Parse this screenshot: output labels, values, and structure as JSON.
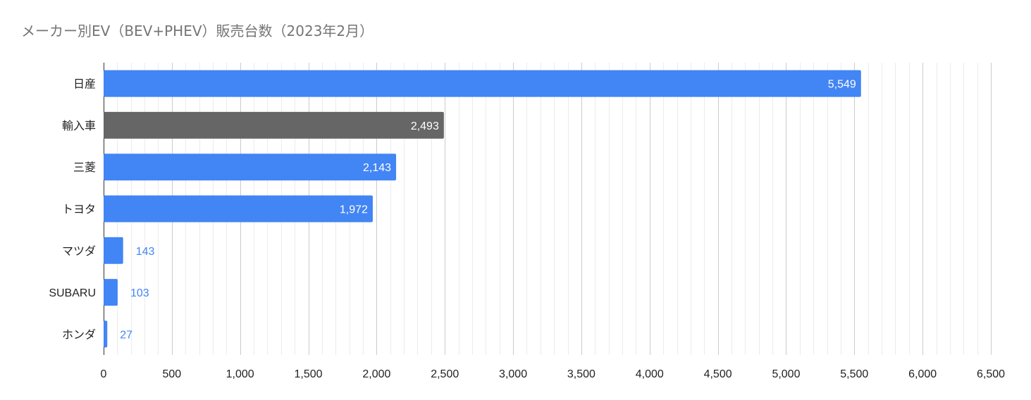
{
  "chart_data": {
    "type": "bar",
    "orientation": "horizontal",
    "title": "メーカー別EV（BEV+PHEV）販売台数（2023年2月）",
    "categories": [
      "日産",
      "輸入車",
      "三菱",
      "トヨタ",
      "マツダ",
      "SUBARU",
      "ホンダ"
    ],
    "values": [
      5549,
      2493,
      2143,
      1972,
      143,
      103,
      27
    ],
    "value_labels": [
      "5,549",
      "2,493",
      "2,143",
      "1,972",
      "143",
      "103",
      "27"
    ],
    "bar_colors": [
      "#4285f4",
      "#666666",
      "#4285f4",
      "#4285f4",
      "#4285f4",
      "#4285f4",
      "#4285f4"
    ],
    "xlim": [
      0,
      6500
    ],
    "xticks": [
      0,
      500,
      1000,
      1500,
      2000,
      2500,
      3000,
      3500,
      4000,
      4500,
      5000,
      5500,
      6000,
      6500
    ],
    "xtick_labels": [
      "0",
      "500",
      "1,000",
      "1,500",
      "2,000",
      "2,500",
      "3,000",
      "3,500",
      "4,000",
      "4,500",
      "5,000",
      "5,500",
      "6,000",
      "6,500"
    ],
    "minor_grid_step": 100,
    "grid": true,
    "colors": {
      "primary": "#4285f4",
      "highlight": "#666666",
      "label_inside": "#ffffff",
      "label_outside": "#4285f4",
      "major_grid": "#cccccc",
      "minor_grid": "#ececec",
      "title": "#757575"
    }
  }
}
